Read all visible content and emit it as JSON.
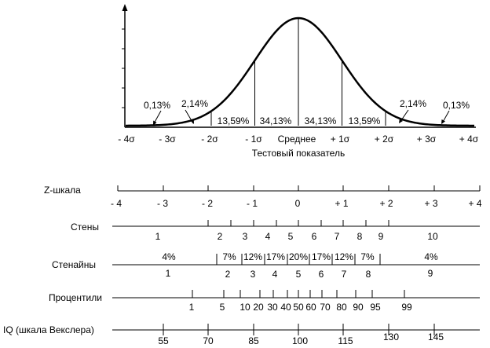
{
  "curve": {
    "axis_ticks": [
      "- 4σ",
      "- 3σ",
      "- 2σ",
      "- 1σ",
      "Среднее",
      "+ 1σ",
      "+ 2σ",
      "+ 3σ",
      "+ 4σ"
    ],
    "axis_title": "Тестовый показатель",
    "region_pcts": [
      "0,13%",
      "2,14%",
      "13,59%",
      "34,13%",
      "34,13%",
      "13,59%",
      "2,14%",
      "0,13%"
    ]
  },
  "z_scale": {
    "label": "Z-шкала",
    "ticks": [
      "- 4",
      "- 3",
      "- 2",
      "- 1",
      "0",
      "+ 1",
      "+ 2",
      "+ 3",
      "+ 4"
    ]
  },
  "stens": {
    "label": "Стены",
    "values": [
      "1",
      "2",
      "3",
      "4",
      "5",
      "6",
      "7",
      "8",
      "9",
      "10"
    ]
  },
  "stanines": {
    "label": "Стенайны",
    "pcts": [
      "4%",
      "7%",
      "12%",
      "17%",
      "20%",
      "17%",
      "12%",
      "7%",
      "4%"
    ],
    "values": [
      "1",
      "2",
      "3",
      "4",
      "5",
      "6",
      "7",
      "8",
      "9"
    ]
  },
  "percentiles": {
    "label": "Процентили",
    "values": [
      "1",
      "5",
      "10",
      "20",
      "30",
      "40",
      "50",
      "60",
      "70",
      "80",
      "90",
      "95",
      "99"
    ]
  },
  "iq": {
    "label": "IQ (шкала Векслера)",
    "values": [
      "55",
      "70",
      "85",
      "100",
      "115",
      "130",
      "145"
    ]
  }
}
